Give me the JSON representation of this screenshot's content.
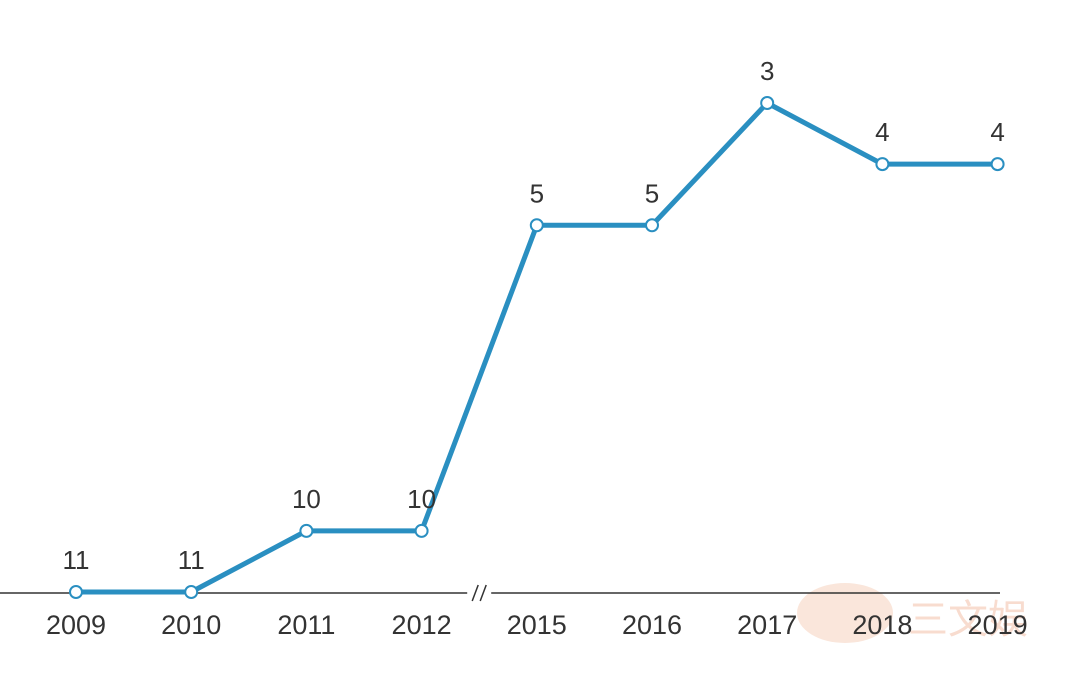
{
  "chart_data": {
    "type": "line",
    "title": "",
    "xlabel": "",
    "ylabel": "",
    "y_axis_inverted": true,
    "y_axis_visible": false,
    "grid": false,
    "x_axis_break_between": [
      "2012",
      "2015"
    ],
    "categories": [
      "2009",
      "2010",
      "2011",
      "2012",
      "2015",
      "2016",
      "2017",
      "2018",
      "2019"
    ],
    "series": [
      {
        "values": [
          11,
          11,
          10,
          10,
          5,
          5,
          3,
          4,
          4
        ],
        "color": "#2a8fc1"
      }
    ],
    "ylim": [
      11,
      3
    ]
  },
  "watermark": {
    "text": "三文娱",
    "color": "#f4c0a8"
  }
}
